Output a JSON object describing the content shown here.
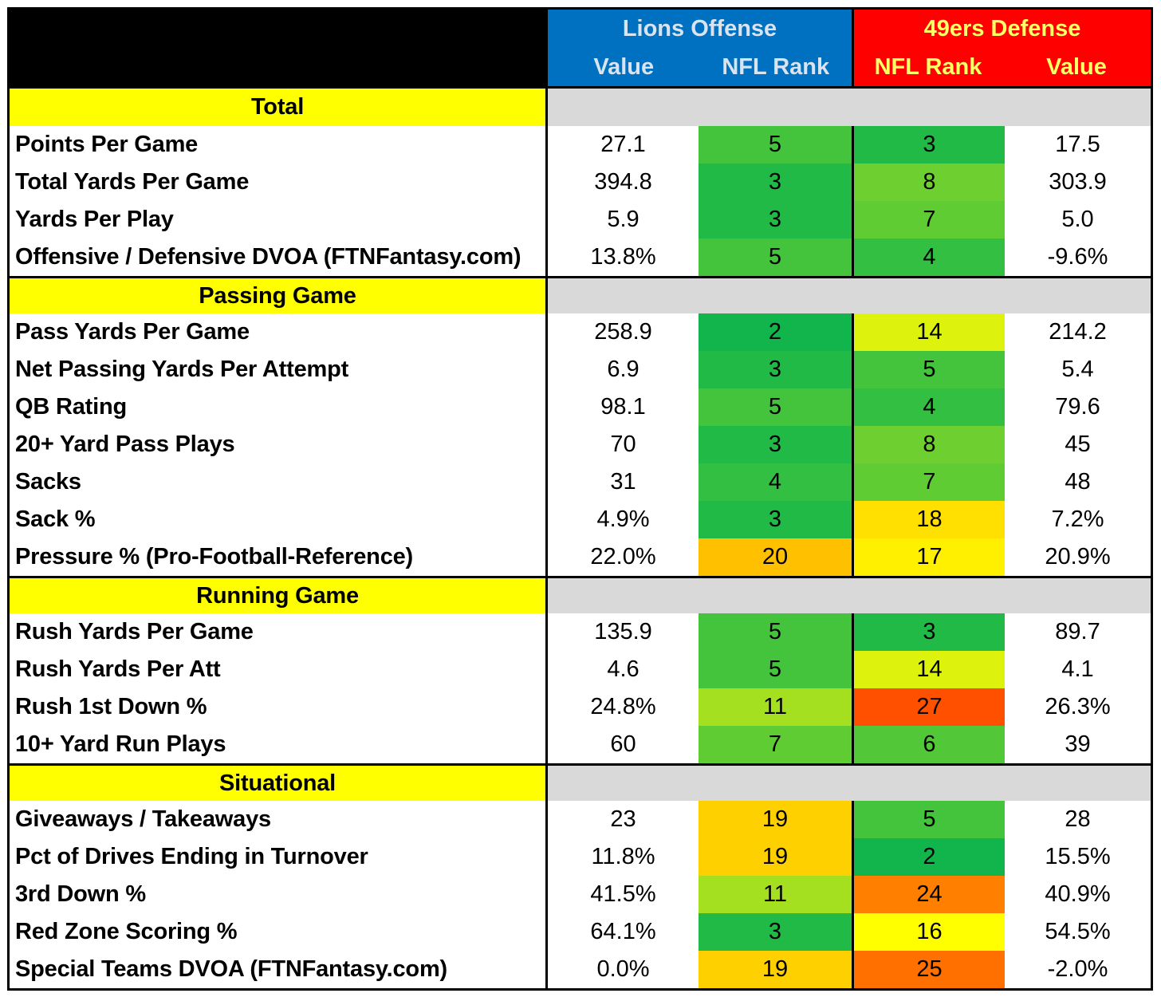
{
  "header": {
    "offense_team": "Lions Offense",
    "defense_team": "49ers Defense",
    "off_col1": "Value",
    "off_col2": "NFL Rank",
    "def_col1": "NFL Rank",
    "def_col2": "Value"
  },
  "colors": {
    "offense_header": "#0070c0",
    "defense_header": "#ff0000",
    "section_label": "#ffff00",
    "section_filler": "#d9d9d9"
  },
  "sections": [
    {
      "title": "Total",
      "rows": [
        {
          "stat": "Points Per Game",
          "off_value": "27.1",
          "off_rank": "5",
          "def_rank": "3",
          "def_value": "17.5"
        },
        {
          "stat": "Total Yards Per Game",
          "off_value": "394.8",
          "off_rank": "3",
          "def_rank": "8",
          "def_value": "303.9"
        },
        {
          "stat": "Yards Per Play",
          "off_value": "5.9",
          "off_rank": "3",
          "def_rank": "7",
          "def_value": "5.0"
        },
        {
          "stat": "Offensive / Defensive DVOA (FTNFantasy.com)",
          "off_value": "13.8%",
          "off_rank": "5",
          "def_rank": "4",
          "def_value": "-9.6%"
        }
      ]
    },
    {
      "title": "Passing Game",
      "rows": [
        {
          "stat": "Pass Yards Per Game",
          "off_value": "258.9",
          "off_rank": "2",
          "def_rank": "14",
          "def_value": "214.2"
        },
        {
          "stat": "Net Passing Yards Per Attempt",
          "off_value": "6.9",
          "off_rank": "3",
          "def_rank": "5",
          "def_value": "5.4"
        },
        {
          "stat": "QB Rating",
          "off_value": "98.1",
          "off_rank": "5",
          "def_rank": "4",
          "def_value": "79.6"
        },
        {
          "stat": "20+ Yard Pass Plays",
          "off_value": "70",
          "off_rank": "3",
          "def_rank": "8",
          "def_value": "45"
        },
        {
          "stat": "Sacks",
          "off_value": "31",
          "off_rank": "4",
          "def_rank": "7",
          "def_value": "48"
        },
        {
          "stat": "Sack %",
          "off_value": "4.9%",
          "off_rank": "3",
          "def_rank": "18",
          "def_value": "7.2%"
        },
        {
          "stat": "Pressure % (Pro-Football-Reference)",
          "off_value": "22.0%",
          "off_rank": "20",
          "def_rank": "17",
          "def_value": "20.9%"
        }
      ]
    },
    {
      "title": "Running Game",
      "rows": [
        {
          "stat": "Rush Yards Per Game",
          "off_value": "135.9",
          "off_rank": "5",
          "def_rank": "3",
          "def_value": "89.7"
        },
        {
          "stat": "Rush Yards Per Att",
          "off_value": "4.6",
          "off_rank": "5",
          "def_rank": "14",
          "def_value": "4.1"
        },
        {
          "stat": "Rush 1st Down %",
          "off_value": "24.8%",
          "off_rank": "11",
          "def_rank": "27",
          "def_value": "26.3%"
        },
        {
          "stat": "10+ Yard Run Plays",
          "off_value": "60",
          "off_rank": "7",
          "def_rank": "6",
          "def_value": "39"
        }
      ]
    },
    {
      "title": "Situational",
      "rows": [
        {
          "stat": "Giveaways / Takeaways",
          "off_value": "23",
          "off_rank": "19",
          "def_rank": "5",
          "def_value": "28"
        },
        {
          "stat": "Pct of Drives Ending in Turnover",
          "off_value": "11.8%",
          "off_rank": "19",
          "def_rank": "2",
          "def_value": "15.5%"
        },
        {
          "stat": "3rd Down %",
          "off_value": "41.5%",
          "off_rank": "11",
          "def_rank": "24",
          "def_value": "40.9%"
        },
        {
          "stat": "Red Zone Scoring %",
          "off_value": "64.1%",
          "off_rank": "3",
          "def_rank": "16",
          "def_value": "54.5%"
        },
        {
          "stat": "Special Teams DVOA  (FTNFantasy.com)",
          "off_value": "0.0%",
          "off_rank": "19",
          "def_rank": "25",
          "def_value": "-2.0%"
        }
      ]
    }
  ]
}
